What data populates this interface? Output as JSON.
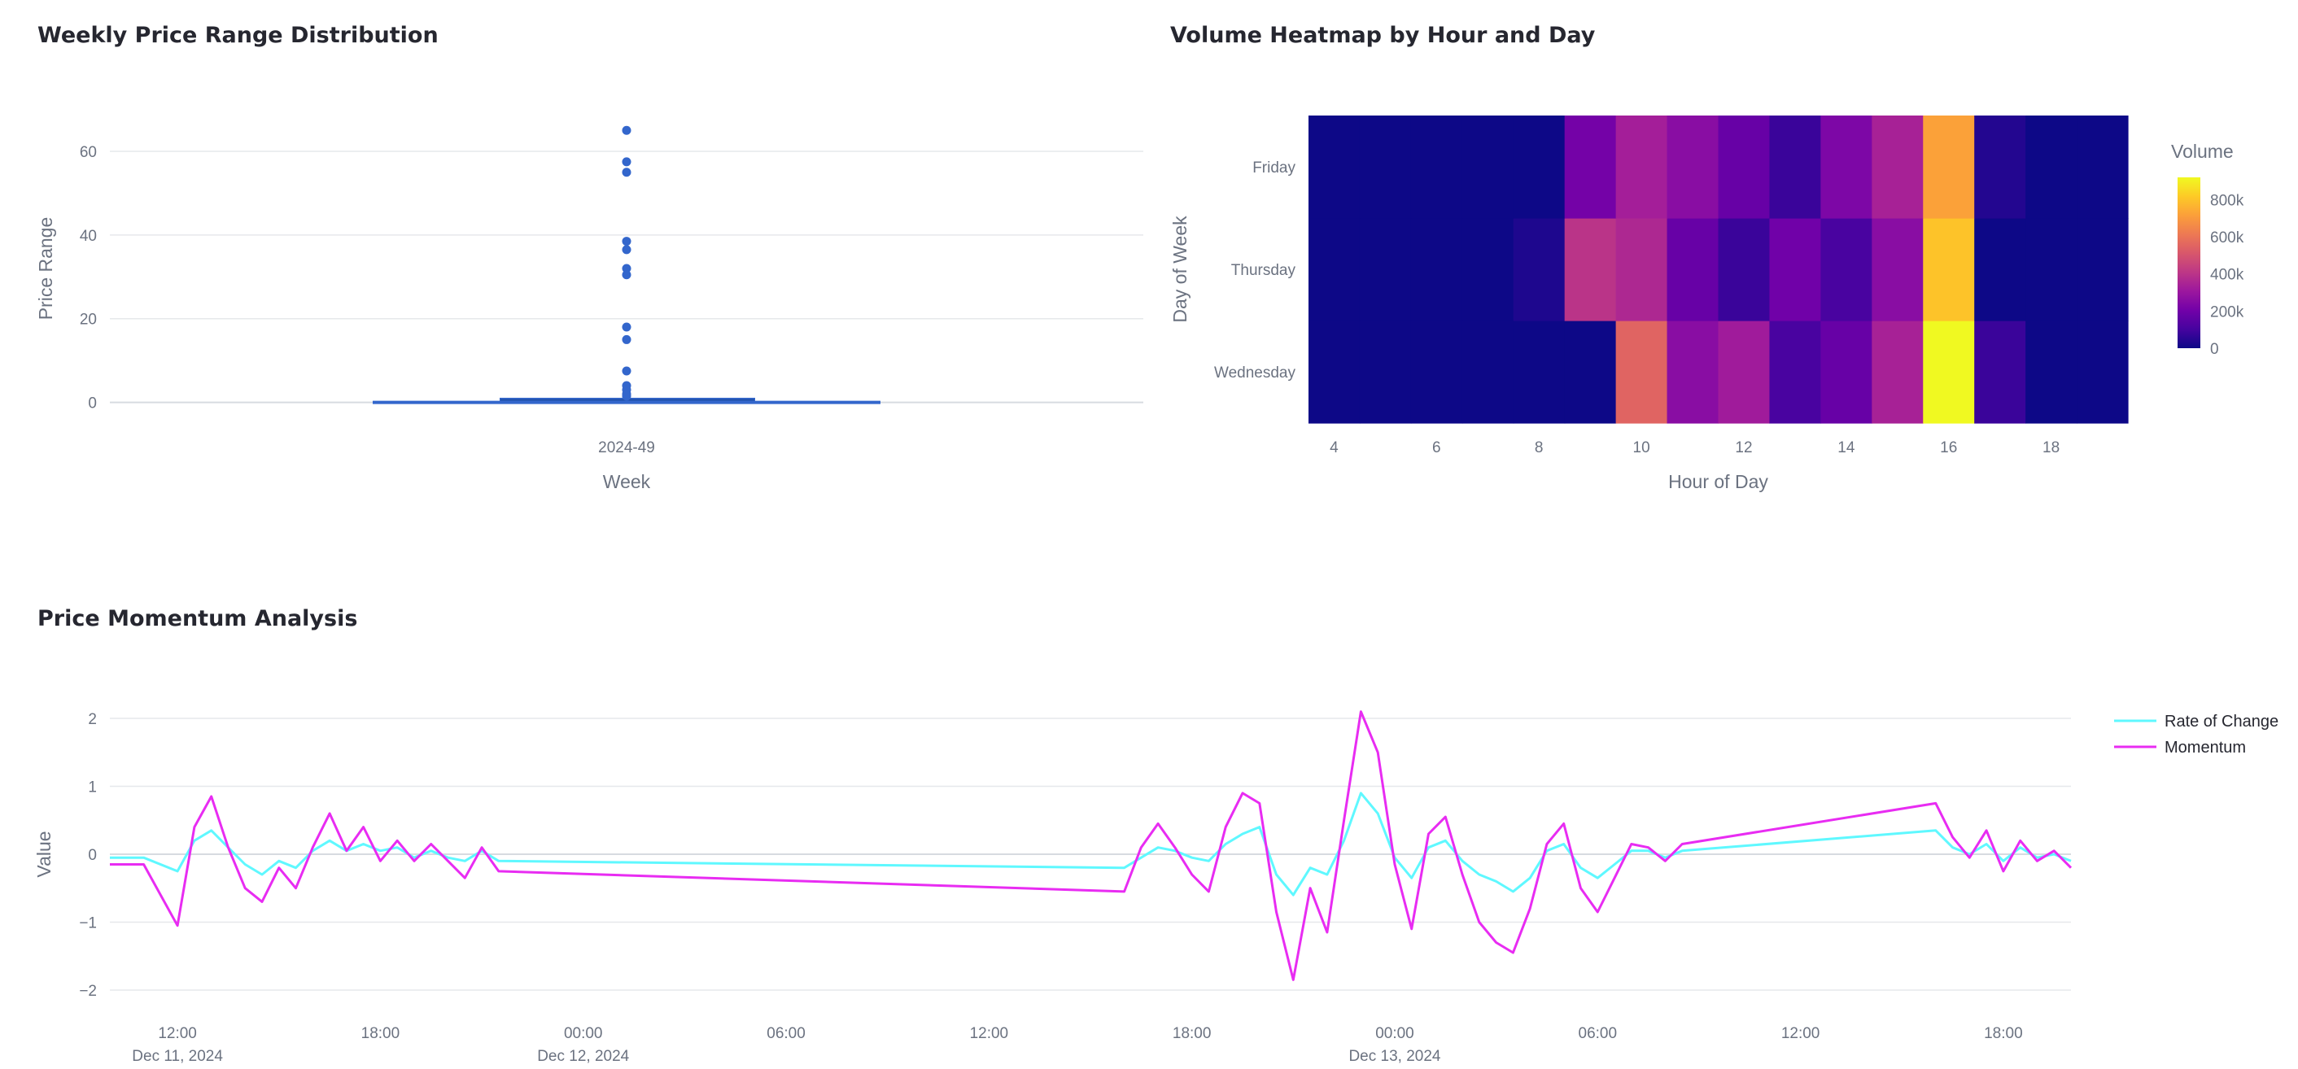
{
  "panels": {
    "box": {
      "title": "Weekly Price Range Distribution"
    },
    "heatmap": {
      "title": "Volume Heatmap by Hour and Day"
    },
    "momentum": {
      "title": "Price Momentum Analysis"
    }
  },
  "chart_data": [
    {
      "type": "box",
      "title": "Weekly Price Range Distribution",
      "xlabel": "Week",
      "ylabel": "Price Range",
      "categories": [
        "2024-49"
      ],
      "ylim": [
        -3,
        67
      ],
      "yticks": [
        0,
        20,
        40,
        60
      ],
      "box": {
        "min": 0,
        "q1": 0.3,
        "median": 0.6,
        "q3": 0.9,
        "upper_fence": 1.1
      },
      "outliers": [
        65,
        57.5,
        55,
        38.5,
        36.5,
        32,
        30.5,
        18,
        15,
        7.5,
        4,
        3,
        2,
        1.5
      ],
      "color": "#3366cc"
    },
    {
      "type": "heatmap",
      "title": "Volume Heatmap by Hour and Day",
      "xlabel": "Hour of Day",
      "ylabel": "Day of Week",
      "x": [
        4,
        5,
        6,
        7,
        8,
        9,
        10,
        11,
        12,
        13,
        14,
        15,
        16,
        17,
        18,
        19
      ],
      "xticks": [
        4,
        6,
        8,
        10,
        12,
        14,
        16,
        18
      ],
      "y": [
        "Wednesday",
        "Thursday",
        "Friday"
      ],
      "values": [
        [
          0,
          0,
          0,
          0,
          0,
          0,
          550000,
          260000,
          320000,
          110000,
          180000,
          340000,
          920000,
          80000,
          0,
          0
        ],
        [
          0,
          0,
          0,
          0,
          30000,
          400000,
          360000,
          180000,
          80000,
          200000,
          110000,
          260000,
          800000,
          0,
          0,
          0
        ],
        [
          0,
          0,
          0,
          0,
          0,
          210000,
          330000,
          260000,
          180000,
          80000,
          230000,
          340000,
          720000,
          40000,
          0,
          0
        ]
      ],
      "colorbar_title": "Volume",
      "colorbar_ticks": [
        "0",
        "200k",
        "400k",
        "600k",
        "800k"
      ],
      "colorscale": "Plasma",
      "zmax": 920000
    },
    {
      "type": "line",
      "title": "Price Momentum Analysis",
      "xlabel": "",
      "ylabel": "Value",
      "ylim": [
        -2.3,
        2.3
      ],
      "yticks": [
        -2,
        -1,
        0,
        1,
        2
      ],
      "xticks": [
        "12:00|Dec 11, 2024",
        "18:00",
        "00:00|Dec 12, 2024",
        "06:00",
        "12:00",
        "18:00",
        "00:00|Dec 13, 2024",
        "06:00",
        "12:00",
        "18:00"
      ],
      "x_range_hours": [
        -2,
        56
      ],
      "series": [
        {
          "name": "Rate of Change",
          "color": "#5ff8ff",
          "points": [
            [
              -2,
              -0.05
            ],
            [
              -1,
              -0.05
            ],
            [
              0,
              -0.25
            ],
            [
              0.5,
              0.2
            ],
            [
              1,
              0.35
            ],
            [
              1.5,
              0.1
            ],
            [
              2,
              -0.15
            ],
            [
              2.5,
              -0.3
            ],
            [
              3,
              -0.1
            ],
            [
              3.5,
              -0.2
            ],
            [
              4,
              0.05
            ],
            [
              4.5,
              0.2
            ],
            [
              5,
              0.05
            ],
            [
              5.5,
              0.15
            ],
            [
              6,
              0.05
            ],
            [
              6.5,
              0.1
            ],
            [
              7,
              -0.05
            ],
            [
              7.5,
              0.05
            ],
            [
              8,
              -0.05
            ],
            [
              8.5,
              -0.1
            ],
            [
              9,
              0.05
            ],
            [
              9.5,
              -0.1
            ],
            [
              28,
              -0.2
            ],
            [
              28.5,
              -0.05
            ],
            [
              29,
              0.1
            ],
            [
              29.5,
              0.05
            ],
            [
              30,
              -0.05
            ],
            [
              30.5,
              -0.1
            ],
            [
              31,
              0.15
            ],
            [
              31.5,
              0.3
            ],
            [
              32,
              0.4
            ],
            [
              32.5,
              -0.3
            ],
            [
              33,
              -0.6
            ],
            [
              33.5,
              -0.2
            ],
            [
              34,
              -0.3
            ],
            [
              34.5,
              0.2
            ],
            [
              35,
              0.9
            ],
            [
              35.5,
              0.6
            ],
            [
              36,
              -0.05
            ],
            [
              36.5,
              -0.35
            ],
            [
              37,
              0.1
            ],
            [
              37.5,
              0.2
            ],
            [
              38,
              -0.1
            ],
            [
              38.5,
              -0.3
            ],
            [
              39,
              -0.4
            ],
            [
              39.5,
              -0.55
            ],
            [
              40,
              -0.35
            ],
            [
              40.5,
              0.05
            ],
            [
              41,
              0.15
            ],
            [
              41.5,
              -0.2
            ],
            [
              42,
              -0.35
            ],
            [
              42.5,
              -0.15
            ],
            [
              43,
              0.05
            ],
            [
              43.5,
              0.05
            ],
            [
              44,
              -0.05
            ],
            [
              44.5,
              0.05
            ],
            [
              52,
              0.35
            ],
            [
              52.5,
              0.1
            ],
            [
              53,
              0
            ],
            [
              53.5,
              0.15
            ],
            [
              54,
              -0.1
            ],
            [
              54.5,
              0.1
            ],
            [
              55,
              -0.05
            ],
            [
              55.5,
              0
            ],
            [
              56,
              -0.1
            ]
          ]
        },
        {
          "name": "Momentum",
          "color": "#e82cf2",
          "points": [
            [
              -2,
              -0.15
            ],
            [
              -1,
              -0.15
            ],
            [
              0,
              -1.05
            ],
            [
              0.5,
              0.4
            ],
            [
              1,
              0.85
            ],
            [
              1.5,
              0.1
            ],
            [
              2,
              -0.5
            ],
            [
              2.5,
              -0.7
            ],
            [
              3,
              -0.2
            ],
            [
              3.5,
              -0.5
            ],
            [
              4,
              0.1
            ],
            [
              4.5,
              0.6
            ],
            [
              5,
              0.05
            ],
            [
              5.5,
              0.4
            ],
            [
              6,
              -0.1
            ],
            [
              6.5,
              0.2
            ],
            [
              7,
              -0.1
            ],
            [
              7.5,
              0.15
            ],
            [
              8,
              -0.1
            ],
            [
              8.5,
              -0.35
            ],
            [
              9,
              0.1
            ],
            [
              9.5,
              -0.25
            ],
            [
              28,
              -0.55
            ],
            [
              28.5,
              0.1
            ],
            [
              29,
              0.45
            ],
            [
              29.5,
              0.1
            ],
            [
              30,
              -0.3
            ],
            [
              30.5,
              -0.55
            ],
            [
              31,
              0.4
            ],
            [
              31.5,
              0.9
            ],
            [
              32,
              0.75
            ],
            [
              32.5,
              -0.85
            ],
            [
              33,
              -1.85
            ],
            [
              33.5,
              -0.5
            ],
            [
              34,
              -1.15
            ],
            [
              34.5,
              0.5
            ],
            [
              35,
              2.1
            ],
            [
              35.5,
              1.5
            ],
            [
              36,
              -0.15
            ],
            [
              36.5,
              -1.1
            ],
            [
              37,
              0.3
            ],
            [
              37.5,
              0.55
            ],
            [
              38,
              -0.3
            ],
            [
              38.5,
              -1
            ],
            [
              39,
              -1.3
            ],
            [
              39.5,
              -1.45
            ],
            [
              40,
              -0.8
            ],
            [
              40.5,
              0.15
            ],
            [
              41,
              0.45
            ],
            [
              41.5,
              -0.5
            ],
            [
              42,
              -0.85
            ],
            [
              42.5,
              -0.35
            ],
            [
              43,
              0.15
            ],
            [
              43.5,
              0.1
            ],
            [
              44,
              -0.1
            ],
            [
              44.5,
              0.15
            ],
            [
              52,
              0.75
            ],
            [
              52.5,
              0.25
            ],
            [
              53,
              -0.05
            ],
            [
              53.5,
              0.35
            ],
            [
              54,
              -0.25
            ],
            [
              54.5,
              0.2
            ],
            [
              55,
              -0.1
            ],
            [
              55.5,
              0.05
            ],
            [
              56,
              -0.2
            ]
          ]
        }
      ],
      "legend_position": "right"
    }
  ]
}
